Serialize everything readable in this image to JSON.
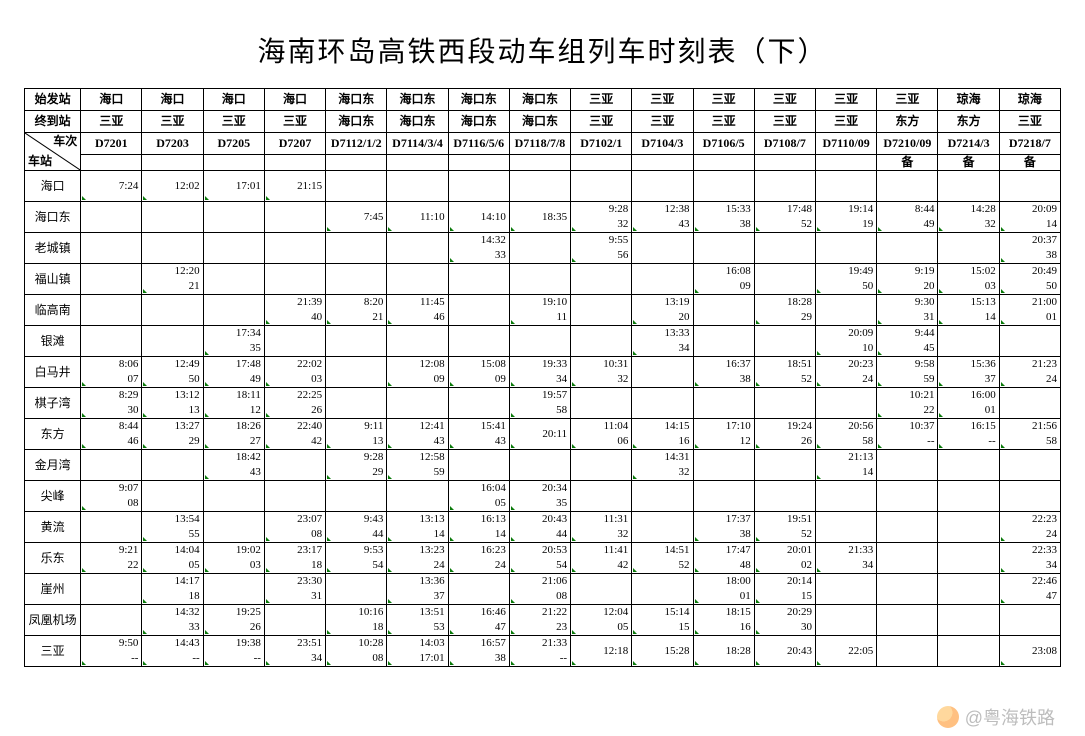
{
  "title": "海南环岛高铁西段动车组列车时刻表（下）",
  "header_labels": {
    "origin": "始发站",
    "dest": "终到站",
    "train": "车次",
    "station": "车站"
  },
  "watermark": "@粤海铁路",
  "colors": {
    "border": "#000000",
    "background": "#ffffff",
    "tick": "#0a7a0a",
    "watermark": "#bdbdbd"
  },
  "trains": [
    {
      "no": "D7201",
      "origin": "海口",
      "dest": "三亚",
      "note": ""
    },
    {
      "no": "D7203",
      "origin": "海口",
      "dest": "三亚",
      "note": ""
    },
    {
      "no": "D7205",
      "origin": "海口",
      "dest": "三亚",
      "note": ""
    },
    {
      "no": "D7207",
      "origin": "海口",
      "dest": "三亚",
      "note": ""
    },
    {
      "no": "D7112/1/2",
      "origin": "海口东",
      "dest": "海口东",
      "note": ""
    },
    {
      "no": "D7114/3/4",
      "origin": "海口东",
      "dest": "海口东",
      "note": ""
    },
    {
      "no": "D7116/5/6",
      "origin": "海口东",
      "dest": "海口东",
      "note": ""
    },
    {
      "no": "D7118/7/8",
      "origin": "海口东",
      "dest": "海口东",
      "note": ""
    },
    {
      "no": "D7102/1",
      "origin": "三亚",
      "dest": "三亚",
      "note": ""
    },
    {
      "no": "D7104/3",
      "origin": "三亚",
      "dest": "三亚",
      "note": ""
    },
    {
      "no": "D7106/5",
      "origin": "三亚",
      "dest": "三亚",
      "note": ""
    },
    {
      "no": "D7108/7",
      "origin": "三亚",
      "dest": "三亚",
      "note": ""
    },
    {
      "no": "D7110/09",
      "origin": "三亚",
      "dest": "三亚",
      "note": ""
    },
    {
      "no": "D7210/09",
      "origin": "三亚",
      "dest": "东方",
      "note": "备"
    },
    {
      "no": "D7214/3",
      "origin": "琼海",
      "dest": "东方",
      "note": "备"
    },
    {
      "no": "D7218/7",
      "origin": "琼海",
      "dest": "三亚",
      "note": "备"
    }
  ],
  "stations": [
    "海口",
    "海口东",
    "老城镇",
    "福山镇",
    "临高南",
    "银滩",
    "白马井",
    "棋子湾",
    "东方",
    "金月湾",
    "尖峰",
    "黄流",
    "乐东",
    "崖州",
    "凤凰机场",
    "三亚"
  ],
  "times": {
    "海口": [
      [
        "",
        "7:24"
      ],
      [
        "",
        "12:02"
      ],
      [
        "",
        "17:01"
      ],
      [
        "",
        "21:15"
      ],
      null,
      null,
      null,
      null,
      null,
      null,
      null,
      null,
      null,
      null,
      null,
      null
    ],
    "海口东": [
      null,
      null,
      null,
      null,
      [
        "",
        "7:45"
      ],
      [
        "",
        "11:10"
      ],
      [
        "",
        "14:10"
      ],
      [
        "",
        "18:35"
      ],
      [
        "9:28",
        "32"
      ],
      [
        "12:38",
        "43"
      ],
      [
        "15:33",
        "38"
      ],
      [
        "17:48",
        "52"
      ],
      [
        "19:14",
        "19"
      ],
      [
        "8:44",
        "49"
      ],
      [
        "14:28",
        "32"
      ],
      [
        "20:09",
        "14"
      ]
    ],
    "老城镇": [
      null,
      null,
      null,
      null,
      null,
      null,
      [
        "14:32",
        "33"
      ],
      null,
      [
        "9:55",
        "56"
      ],
      null,
      null,
      null,
      null,
      null,
      null,
      [
        "20:37",
        "38"
      ]
    ],
    "福山镇": [
      null,
      [
        "12:20",
        "21"
      ],
      null,
      null,
      null,
      null,
      null,
      null,
      null,
      null,
      [
        "16:08",
        "09"
      ],
      null,
      [
        "19:49",
        "50"
      ],
      [
        "9:19",
        "20"
      ],
      [
        "15:02",
        "03"
      ],
      [
        "20:49",
        "50"
      ]
    ],
    "临高南": [
      null,
      null,
      null,
      [
        "21:39",
        "40"
      ],
      [
        "8:20",
        "21"
      ],
      [
        "11:45",
        "46"
      ],
      null,
      [
        "19:10",
        "11"
      ],
      null,
      [
        "13:19",
        "20"
      ],
      null,
      [
        "18:28",
        "29"
      ],
      null,
      [
        "9:30",
        "31"
      ],
      [
        "15:13",
        "14"
      ],
      [
        "21:00",
        "01"
      ]
    ],
    "银滩": [
      null,
      null,
      [
        "17:34",
        "35"
      ],
      null,
      null,
      null,
      null,
      null,
      null,
      [
        "13:33",
        "34"
      ],
      null,
      null,
      [
        "20:09",
        "10"
      ],
      [
        "9:44",
        "45"
      ],
      null,
      null
    ],
    "白马井": [
      [
        "8:06",
        "07"
      ],
      [
        "12:49",
        "50"
      ],
      [
        "17:48",
        "49"
      ],
      [
        "22:02",
        "03"
      ],
      null,
      [
        "12:08",
        "09"
      ],
      [
        "15:08",
        "09"
      ],
      [
        "19:33",
        "34"
      ],
      [
        "10:31",
        "32"
      ],
      null,
      [
        "16:37",
        "38"
      ],
      [
        "18:51",
        "52"
      ],
      [
        "20:23",
        "24"
      ],
      [
        "9:58",
        "59"
      ],
      [
        "15:36",
        "37"
      ],
      [
        "21:23",
        "24"
      ]
    ],
    "棋子湾": [
      [
        "8:29",
        "30"
      ],
      [
        "13:12",
        "13"
      ],
      [
        "18:11",
        "12"
      ],
      [
        "22:25",
        "26"
      ],
      null,
      null,
      null,
      [
        "19:57",
        "58"
      ],
      null,
      null,
      null,
      null,
      null,
      [
        "10:21",
        "22"
      ],
      [
        "16:00",
        "01"
      ],
      null
    ],
    "东方": [
      [
        "8:44",
        "46"
      ],
      [
        "13:27",
        "29"
      ],
      [
        "18:26",
        "27"
      ],
      [
        "22:40",
        "42"
      ],
      [
        "9:11",
        "13"
      ],
      [
        "12:41",
        "43"
      ],
      [
        "15:41",
        "43"
      ],
      [
        "20:11",
        ""
      ],
      [
        "11:04",
        "06"
      ],
      [
        "14:15",
        "16"
      ],
      [
        "17:10",
        "12"
      ],
      [
        "19:24",
        "26"
      ],
      [
        "20:56",
        "58"
      ],
      [
        "10:37",
        "--"
      ],
      [
        "16:15",
        "--"
      ],
      [
        "21:56",
        "58"
      ]
    ],
    "金月湾": [
      null,
      null,
      [
        "18:42",
        "43"
      ],
      null,
      [
        "9:28",
        "29"
      ],
      [
        "12:58",
        "59"
      ],
      null,
      null,
      null,
      [
        "14:31",
        "32"
      ],
      null,
      null,
      [
        "21:13",
        "14"
      ],
      null,
      null,
      null
    ],
    "尖峰": [
      [
        "9:07",
        "08"
      ],
      null,
      null,
      null,
      null,
      null,
      [
        "16:04",
        "05"
      ],
      [
        "20:34",
        "35"
      ],
      null,
      null,
      null,
      null,
      null,
      null,
      null,
      null
    ],
    "黄流": [
      null,
      [
        "13:54",
        "55"
      ],
      null,
      [
        "23:07",
        "08"
      ],
      [
        "9:43",
        "44"
      ],
      [
        "13:13",
        "14"
      ],
      [
        "16:13",
        "14"
      ],
      [
        "20:43",
        "44"
      ],
      [
        "11:31",
        "32"
      ],
      null,
      [
        "17:37",
        "38"
      ],
      [
        "19:51",
        "52"
      ],
      null,
      null,
      null,
      [
        "22:23",
        "24"
      ]
    ],
    "乐东": [
      [
        "9:21",
        "22"
      ],
      [
        "14:04",
        "05"
      ],
      [
        "19:02",
        "03"
      ],
      [
        "23:17",
        "18"
      ],
      [
        "9:53",
        "54"
      ],
      [
        "13:23",
        "24"
      ],
      [
        "16:23",
        "24"
      ],
      [
        "20:53",
        "54"
      ],
      [
        "11:41",
        "42"
      ],
      [
        "14:51",
        "52"
      ],
      [
        "17:47",
        "48"
      ],
      [
        "20:01",
        "02"
      ],
      [
        "21:33",
        "34"
      ],
      null,
      null,
      [
        "22:33",
        "34"
      ]
    ],
    "崖州": [
      null,
      [
        "14:17",
        "18"
      ],
      null,
      [
        "23:30",
        "31"
      ],
      null,
      [
        "13:36",
        "37"
      ],
      null,
      [
        "21:06",
        "08"
      ],
      null,
      null,
      [
        "18:00",
        "01"
      ],
      [
        "20:14",
        "15"
      ],
      null,
      null,
      null,
      [
        "22:46",
        "47"
      ]
    ],
    "凤凰机场": [
      null,
      [
        "14:32",
        "33"
      ],
      [
        "19:25",
        "26"
      ],
      null,
      [
        "10:16",
        "18"
      ],
      [
        "13:51",
        "53"
      ],
      [
        "16:46",
        "47"
      ],
      [
        "21:22",
        "23"
      ],
      [
        "12:04",
        "05"
      ],
      [
        "15:14",
        "15"
      ],
      [
        "18:15",
        "16"
      ],
      [
        "20:29",
        "30"
      ],
      null,
      null,
      null,
      null
    ],
    "三亚": [
      [
        "9:50",
        "--"
      ],
      [
        "14:43",
        "--"
      ],
      [
        "19:38",
        "--"
      ],
      [
        "23:51",
        "34"
      ],
      [
        "10:28",
        "08"
      ],
      [
        "14:03",
        "17:01"
      ],
      [
        "16:57",
        "38"
      ],
      [
        "21:33",
        "--"
      ],
      [
        "12:18",
        ""
      ],
      [
        "15:28",
        ""
      ],
      [
        "18:28",
        ""
      ],
      [
        "20:43",
        ""
      ],
      [
        "22:05",
        ""
      ],
      null,
      null,
      [
        "23:08",
        ""
      ]
    ]
  }
}
